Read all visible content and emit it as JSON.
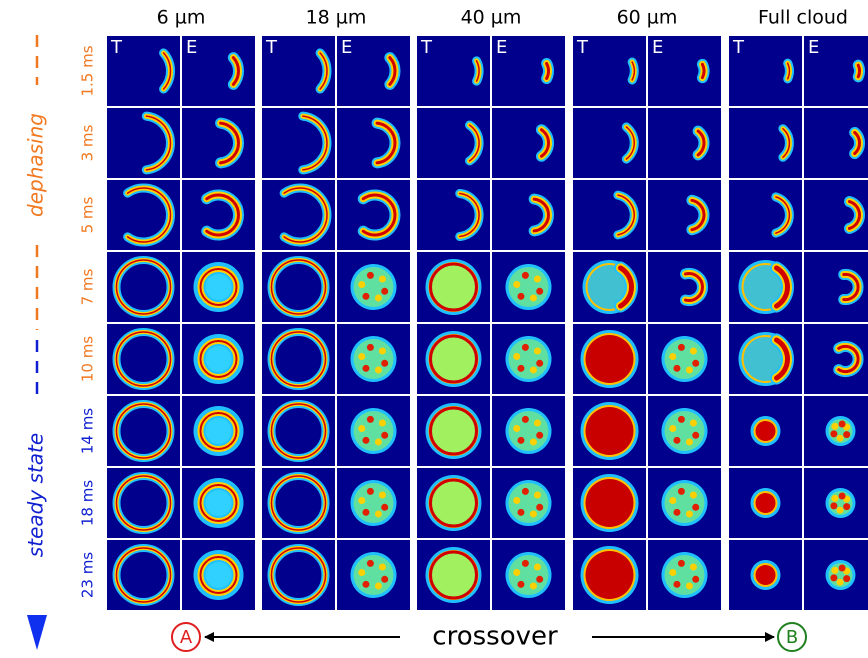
{
  "columns": [
    {
      "header": "6 µm",
      "panels": [
        "T",
        "E"
      ]
    },
    {
      "header": "18 µm",
      "panels": [
        "T",
        "E"
      ]
    },
    {
      "header": "40 µm",
      "panels": [
        "T",
        "E"
      ]
    },
    {
      "header": "60 µm",
      "panels": [
        "T",
        "E"
      ]
    },
    {
      "header": "Full cloud",
      "panels": [
        "T",
        "E"
      ]
    }
  ],
  "rows": [
    "1.5 ms",
    "3 ms",
    "5 ms",
    "7 ms",
    "10 ms",
    "14 ms",
    "18 ms",
    "23 ms"
  ],
  "side_labels": {
    "dephasing": "dephasing",
    "steady_state": "steady state"
  },
  "bottom": {
    "start": "A",
    "label": "crossover",
    "end": "B"
  }
}
